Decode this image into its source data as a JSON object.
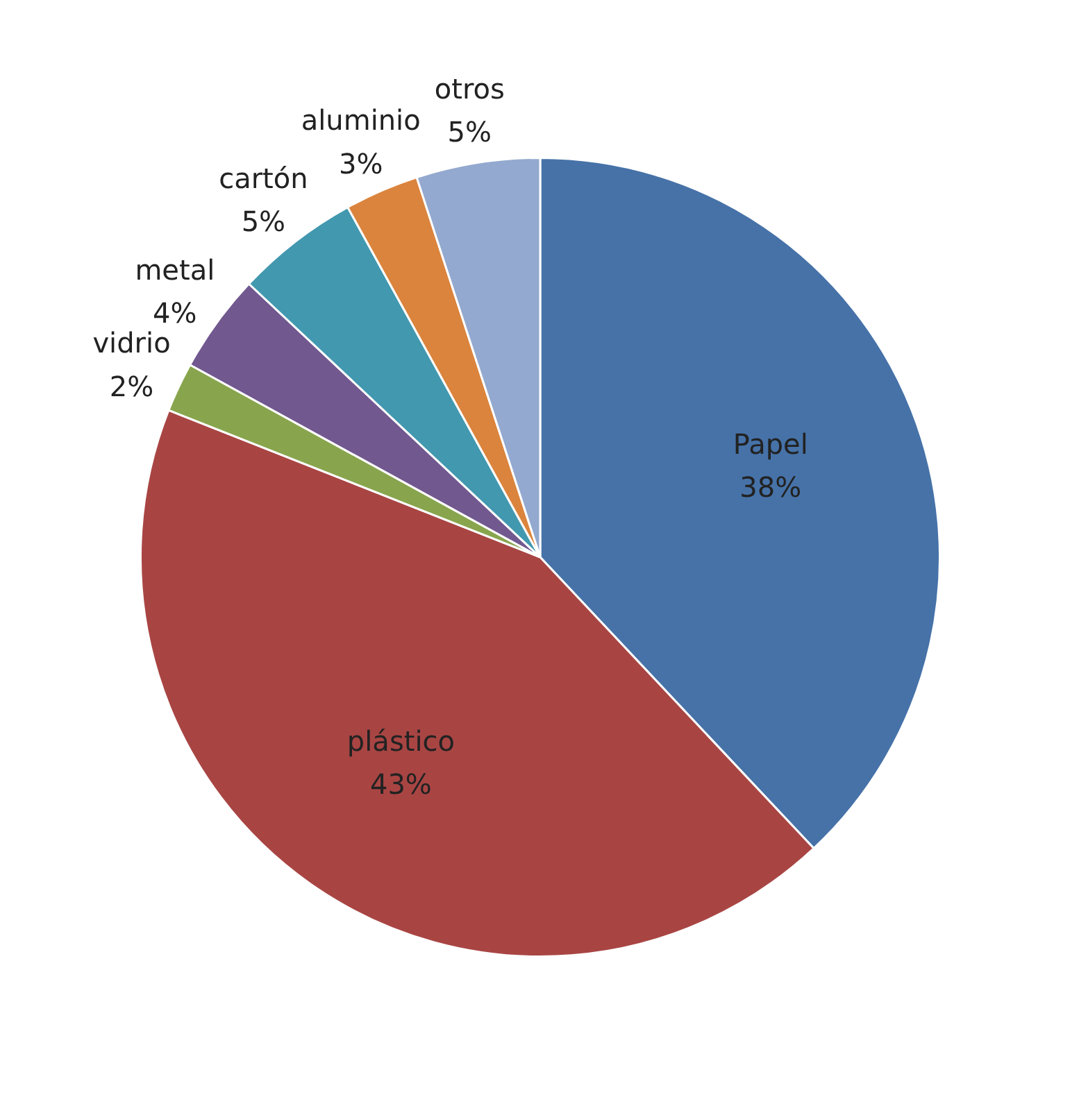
{
  "chart_data": {
    "type": "pie",
    "categories": [
      "Papel",
      "plástico",
      "vidrio",
      "metal",
      "cartón",
      "aluminio",
      "otros"
    ],
    "values": [
      38,
      43,
      2,
      4,
      5,
      3,
      5
    ],
    "colors": [
      "#4672a8",
      "#a84543",
      "#88a54e",
      "#71588f",
      "#4298af",
      "#db843d",
      "#93a9cf"
    ],
    "value_labels": [
      "38%",
      "43%",
      "2%",
      "4%",
      "5%",
      "3%",
      "5%"
    ],
    "legend": false
  }
}
